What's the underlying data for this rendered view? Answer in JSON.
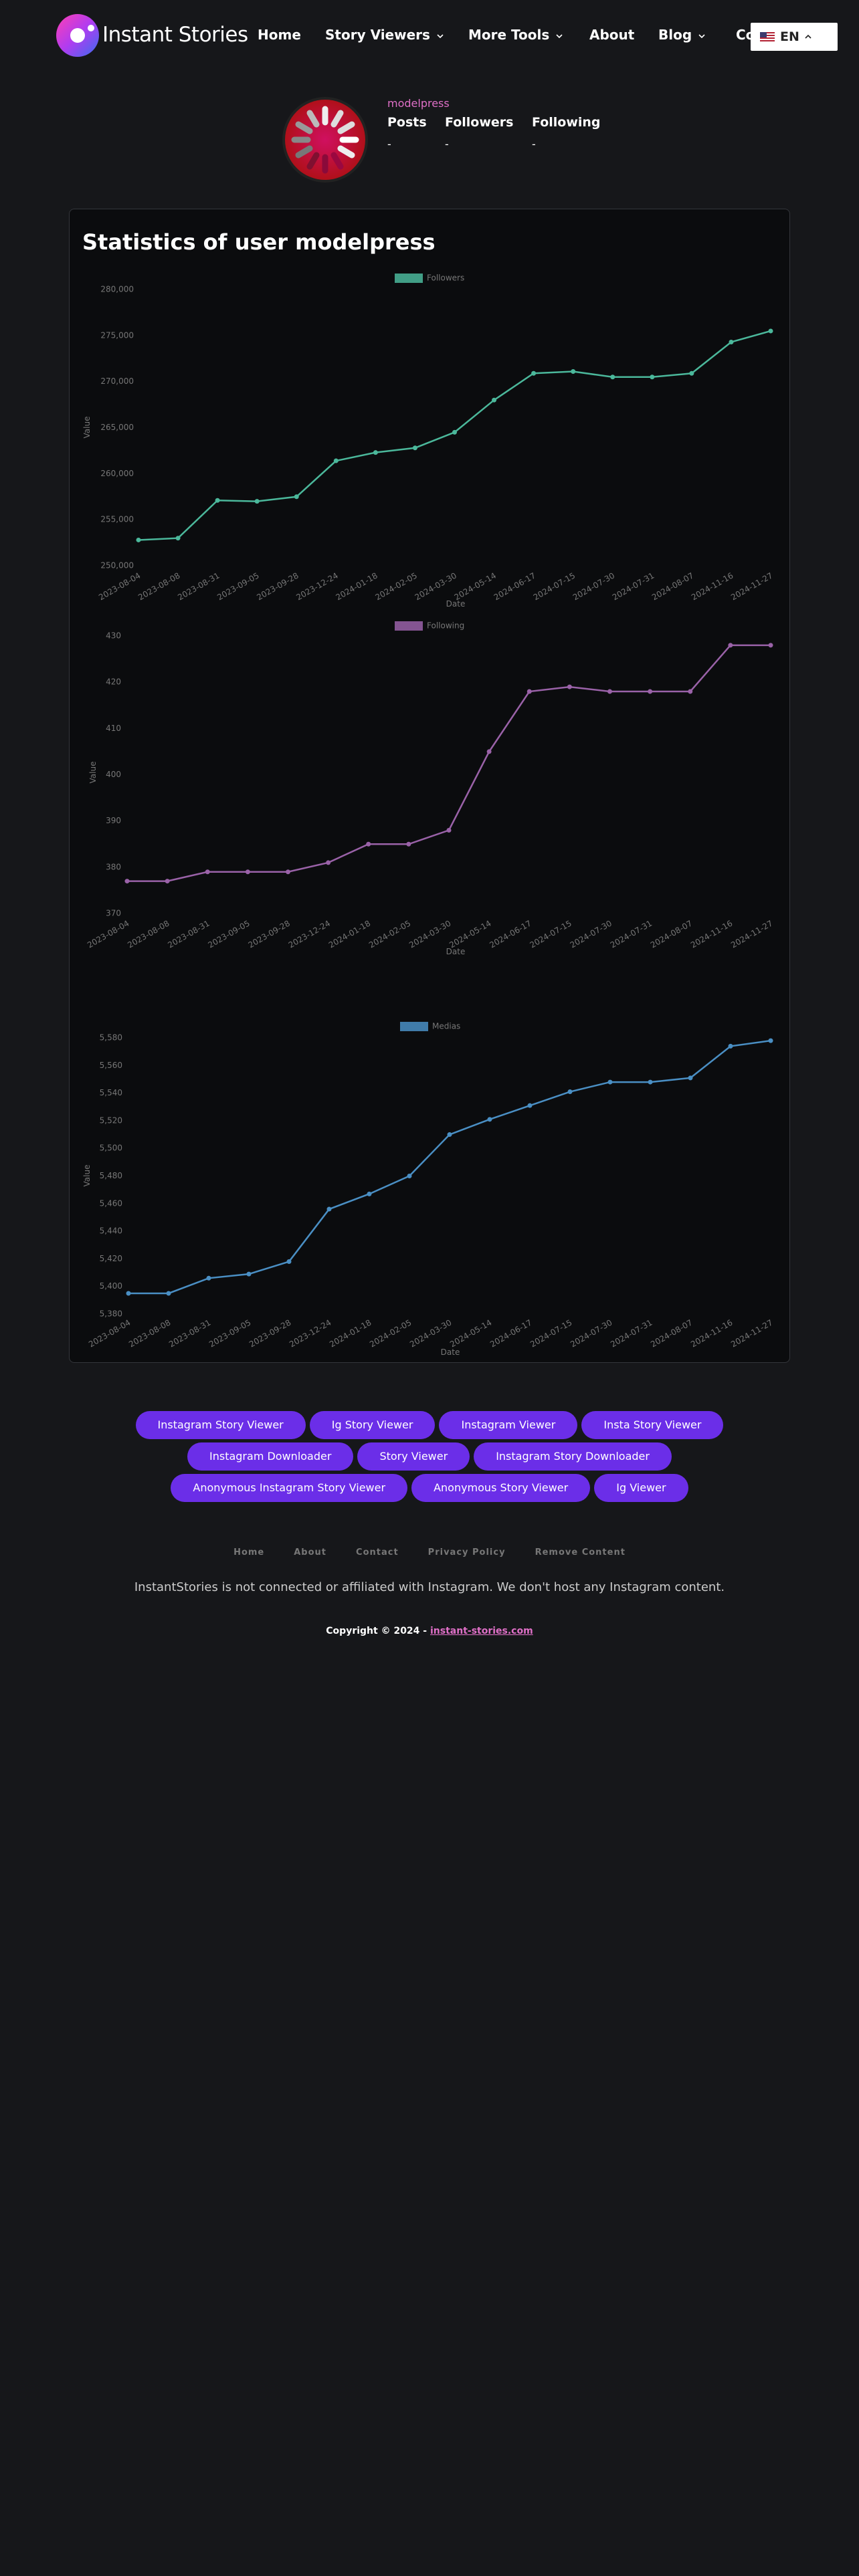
{
  "header": {
    "logo_text": "Instant Stories",
    "nav": [
      "Home",
      "Story Viewers",
      "More Tools",
      "About",
      "Blog",
      "Contact"
    ],
    "language": "EN"
  },
  "profile": {
    "username": "modelpress",
    "stats": [
      {
        "label": "Posts",
        "value": "-"
      },
      {
        "label": "Followers",
        "value": "-"
      },
      {
        "label": "Following",
        "value": "-"
      }
    ]
  },
  "stats_title": "Statistics of user modelpress",
  "chart_data": [
    {
      "type": "line",
      "xlabel": "Date",
      "ylabel": "Value",
      "categories": [
        "2023-08-04",
        "2023-08-08",
        "2023-08-31",
        "2023-09-05",
        "2023-09-28",
        "2023-12-24",
        "2024-01-18",
        "2024-02-05",
        "2024-03-30",
        "2024-05-14",
        "2024-06-17",
        "2024-07-15",
        "2024-07-30",
        "2024-07-31",
        "2024-08-07",
        "2024-11-16",
        "2024-11-27"
      ],
      "series": [
        {
          "name": "Followers",
          "color": "#4bb89b",
          "values": [
            252800,
            253000,
            257100,
            257000,
            257500,
            261400,
            262300,
            262800,
            264500,
            268000,
            270900,
            271100,
            270500,
            270500,
            270900,
            274300,
            275500
          ]
        }
      ],
      "ylim": [
        250000,
        280000
      ],
      "yticks": [
        {
          "value": 250000,
          "label": "250,000"
        },
        {
          "value": 255000,
          "label": "255,000"
        },
        {
          "value": 260000,
          "label": "260,000"
        },
        {
          "value": 265000,
          "label": "265,000"
        },
        {
          "value": 270000,
          "label": "270,000"
        },
        {
          "value": 275000,
          "label": "275,000"
        },
        {
          "value": 280000,
          "label": "280,000"
        }
      ]
    },
    {
      "type": "line",
      "xlabel": "Date",
      "ylabel": "Value",
      "categories": [
        "2023-08-04",
        "2023-08-08",
        "2023-08-31",
        "2023-09-05",
        "2023-09-28",
        "2023-12-24",
        "2024-01-18",
        "2024-02-05",
        "2024-03-30",
        "2024-05-14",
        "2024-06-17",
        "2024-07-15",
        "2024-07-30",
        "2024-07-31",
        "2024-08-07",
        "2024-11-16",
        "2024-11-27"
      ],
      "series": [
        {
          "name": "Following",
          "color": "#9a62a8",
          "values": [
            377,
            377,
            379,
            379,
            379,
            381,
            385,
            385,
            388,
            405,
            418,
            419,
            418,
            418,
            418,
            428,
            428
          ]
        }
      ],
      "ylim": [
        370,
        430
      ],
      "yticks": [
        370,
        380,
        390,
        400,
        410,
        420,
        430
      ]
    },
    {
      "type": "line",
      "xlabel": "Date",
      "ylabel": "Value",
      "categories": [
        "2023-08-04",
        "2023-08-08",
        "2023-08-31",
        "2023-09-05",
        "2023-09-28",
        "2023-12-24",
        "2024-01-18",
        "2024-02-05",
        "2024-03-30",
        "2024-05-14",
        "2024-06-17",
        "2024-07-15",
        "2024-07-30",
        "2024-07-31",
        "2024-08-07",
        "2024-11-16",
        "2024-11-27"
      ],
      "series": [
        {
          "name": "Medias",
          "color": "#4a8fc4",
          "values": [
            5395,
            5395,
            5406,
            5409,
            5418,
            5456,
            5467,
            5480,
            5510,
            5521,
            5531,
            5541,
            5548,
            5548,
            5551,
            5574,
            5578
          ]
        }
      ],
      "ylim": [
        5380,
        5580
      ],
      "yticks": [
        {
          "value": 5380,
          "label": "5,380"
        },
        {
          "value": 5400,
          "label": "5,400"
        },
        {
          "value": 5420,
          "label": "5,420"
        },
        {
          "value": 5440,
          "label": "5,440"
        },
        {
          "value": 5460,
          "label": "5,460"
        },
        {
          "value": 5480,
          "label": "5,480"
        },
        {
          "value": 5500,
          "label": "5,500"
        },
        {
          "value": 5520,
          "label": "5,520"
        },
        {
          "value": 5540,
          "label": "5,540"
        },
        {
          "value": 5560,
          "label": "5,560"
        },
        {
          "value": 5580,
          "label": "5,580"
        }
      ]
    }
  ],
  "tool_links": [
    [
      "Instagram Story Viewer",
      "Ig Story Viewer",
      "Instagram Viewer",
      "Insta Story Viewer"
    ],
    [
      "Instagram Downloader",
      "Story Viewer",
      "Instagram Story Downloader"
    ],
    [
      "Anonymous Instagram Story Viewer",
      "Anonymous Story Viewer",
      "Ig Viewer"
    ]
  ],
  "footer": {
    "links": [
      "Home",
      "About",
      "Contact",
      "Privacy Policy",
      "Remove Content"
    ],
    "disclaimer": "InstantStories is not connected or affiliated with Instagram. We don't host any Instagram content.",
    "copyright": "Copyright © 2024 - ",
    "site": "instant-stories.com"
  }
}
